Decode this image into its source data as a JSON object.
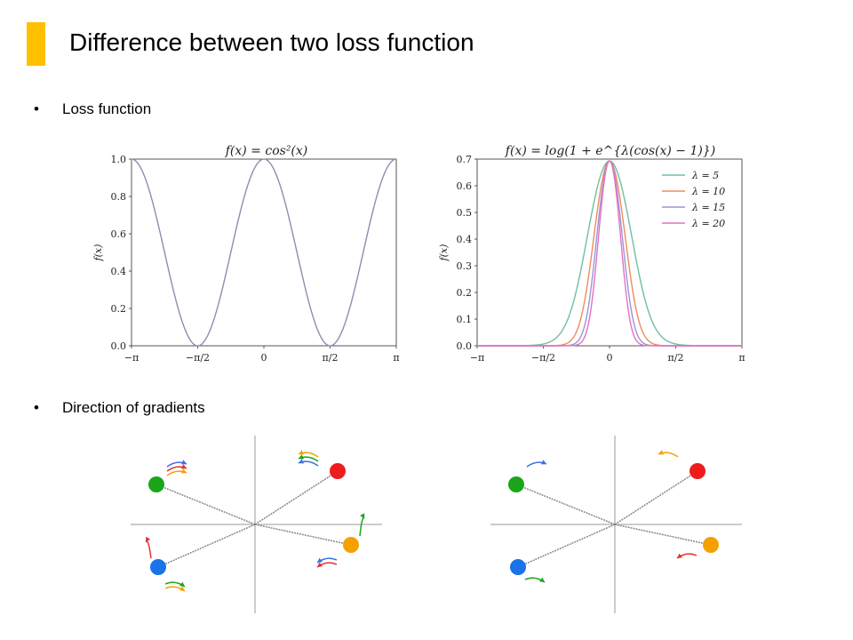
{
  "slide": {
    "title": "Difference between two loss function",
    "accent_color": "#FFC000"
  },
  "bullets": [
    {
      "symbol": "•",
      "label": "Loss function"
    },
    {
      "symbol": "•",
      "label": "Direction of gradients"
    }
  ],
  "chart_data": [
    {
      "type": "line",
      "title": "f(x) = cos²(x)",
      "ylabel": "f(x)",
      "xlim": [
        -3.14159,
        3.14159
      ],
      "ylim": [
        0,
        1.0
      ],
      "xticks": [
        -3.14159,
        -1.5708,
        0,
        1.5708,
        3.14159
      ],
      "xticklabels": [
        "−π",
        "−π/2",
        "0",
        "π/2",
        "π"
      ],
      "yticks": [
        0,
        0.2,
        0.4,
        0.6,
        0.8,
        1.0
      ],
      "yticklabels": [
        "0.0",
        "0.2",
        "0.4",
        "0.6",
        "0.8",
        "1.0"
      ],
      "series": [
        {
          "color": "#8a8fb0",
          "formula": "cos2",
          "lambda": null
        }
      ]
    },
    {
      "type": "line",
      "title": "f(x) = log(1 + e^{λ(cos(x) − 1)})",
      "ylabel": "f(x)",
      "xlim": [
        -3.14159,
        3.14159
      ],
      "ylim": [
        0,
        0.7
      ],
      "xticks": [
        -3.14159,
        -1.5708,
        0,
        1.5708,
        3.14159
      ],
      "xticklabels": [
        "−π",
        "−π/2",
        "0",
        "π/2",
        "π"
      ],
      "yticks": [
        0,
        0.1,
        0.2,
        0.3,
        0.4,
        0.5,
        0.6,
        0.7
      ],
      "yticklabels": [
        "0.0",
        "0.1",
        "0.2",
        "0.3",
        "0.4",
        "0.5",
        "0.6",
        "0.7"
      ],
      "legend_position": "top-right",
      "series": [
        {
          "name": "λ = 5",
          "lambda": 5,
          "color": "#6fbfa0",
          "formula": "logexp"
        },
        {
          "name": "λ = 10",
          "lambda": 10,
          "color": "#f08a5d",
          "formula": "logexp"
        },
        {
          "name": "λ = 15",
          "lambda": 15,
          "color": "#9a96d6",
          "formula": "logexp"
        },
        {
          "name": "λ = 20",
          "lambda": 20,
          "color": "#e272c2",
          "formula": "logexp"
        }
      ]
    }
  ],
  "gradient_diagrams": [
    {
      "points": [
        {
          "name": "green",
          "color": "#1aa51a",
          "arrows": [
            "#3b6fe0",
            "#e53030",
            "#f5a000"
          ]
        },
        {
          "name": "red",
          "color": "#ee1c1c",
          "arrows": [
            "#f5a000",
            "#1aa51a",
            "#3b6fe0"
          ]
        },
        {
          "name": "orange",
          "color": "#f5a000",
          "arrows": [
            "#1aa51a",
            "#3b6fe0",
            "#e53030"
          ]
        },
        {
          "name": "blue",
          "color": "#1a73e8",
          "arrows": [
            "#e53030",
            "#1aa51a",
            "#f5a000"
          ]
        }
      ]
    },
    {
      "points": [
        {
          "name": "green",
          "color": "#1aa51a",
          "arrows": [
            "#3b6fe0"
          ]
        },
        {
          "name": "red",
          "color": "#ee1c1c",
          "arrows": [
            "#f5a000"
          ]
        },
        {
          "name": "orange",
          "color": "#f5a000",
          "arrows": [
            "#e53030"
          ]
        },
        {
          "name": "blue",
          "color": "#1a73e8",
          "arrows": [
            "#1aa51a"
          ]
        }
      ]
    }
  ]
}
